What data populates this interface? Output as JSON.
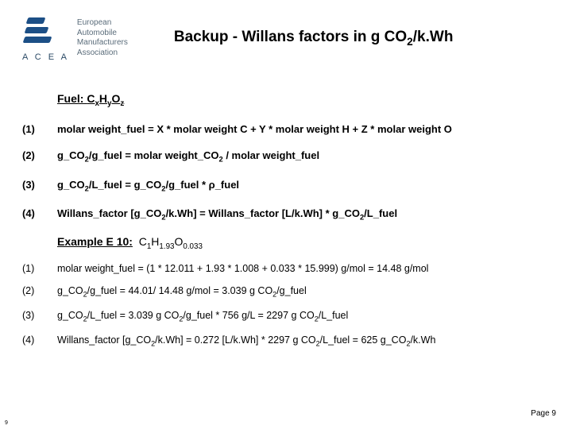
{
  "header": {
    "org_name_line1": "European",
    "org_name_line2": "Automobile",
    "org_name_line3": "Manufacturers",
    "org_name_line4": "Association",
    "acea": "A C E A",
    "title_pre": "Backup - Willans factors in g CO",
    "title_sub": "2",
    "title_post": "/k.Wh"
  },
  "fuel": {
    "label_pre": "Fuel:",
    "formula_c": "C",
    "formula_x": "x",
    "formula_h": "H",
    "formula_y": "y",
    "formula_o": "O",
    "formula_z": "z"
  },
  "equations": [
    {
      "n": "(1)",
      "html": "<b>molar weight_fuel = X * molar weight C + Y * molar weight H + Z * molar weight O</b>"
    },
    {
      "n": "(2)",
      "html": "<b>g_CO<sub>2</sub>/g_fuel = molar weight_CO<sub>2</sub> / molar weight_fuel</b>"
    },
    {
      "n": "(3)",
      "html": "<b>g_CO<sub>2</sub>/L_fuel = g_CO<sub>2</sub>/g_fuel * ρ_fuel</b>"
    },
    {
      "n": "(4)",
      "html": "<b>Willans_factor [g_CO<sub>2</sub>/k.Wh] = Willans_factor [L/k.Wh] *  g_CO<sub>2</sub>/L_fuel</b>"
    }
  ],
  "example": {
    "label": "Example E 10:",
    "formula_html": "C<sub>1</sub>H<sub>1.93</sub>O<sub>0.033</sub>"
  },
  "example_lines": [
    {
      "n": "(1)",
      "html": "molar weight_fuel = (1 * 12.011 + 1.93 * 1.008 + 0.033 * 15.999) g/mol = 14.48 g/mol"
    },
    {
      "n": "(2)",
      "html": "g_CO<sub>2</sub>/g_fuel = 44.01/ 14.48 g/mol = 3.039 g CO<sub>2</sub>/g_fuel"
    },
    {
      "n": "(3)",
      "html": "g_CO<sub>2</sub>/L_fuel = 3.039 g CO<sub>2</sub>/g_fuel * 756 g/L = 2297 g CO<sub>2</sub>/L_fuel"
    },
    {
      "n": "(4)",
      "html": "Willans_factor [g_CO<sub>2</sub>/k.Wh] = 0.272 [L/k.Wh] * 2297 g CO<sub>2</sub>/L_fuel = 625 g_CO<sub>2</sub>/k.Wh"
    }
  ],
  "footer": {
    "page_label": "Page 9",
    "tiny": "9"
  }
}
